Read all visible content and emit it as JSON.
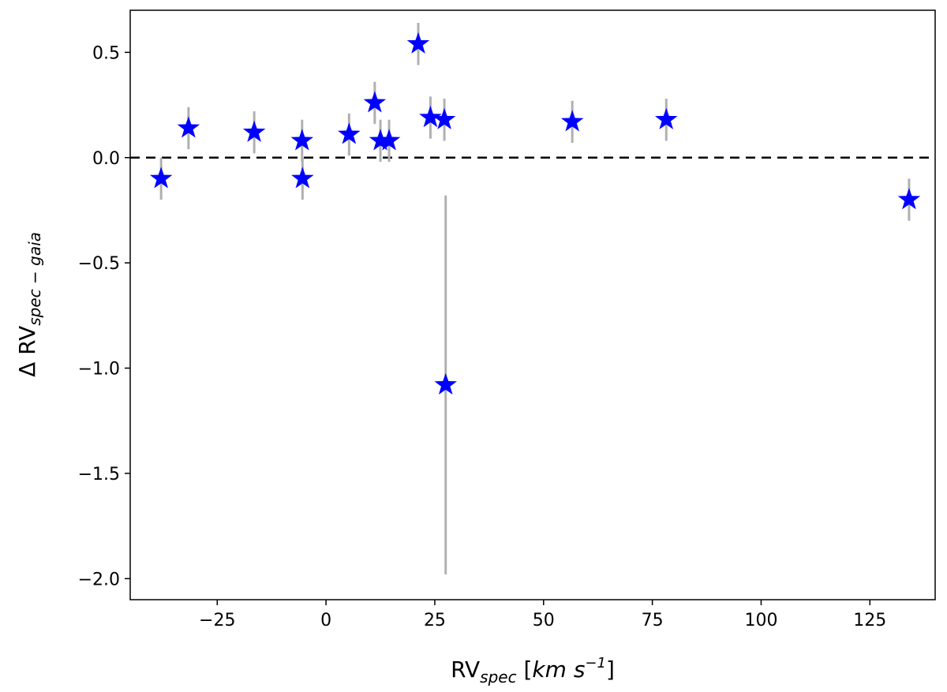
{
  "chart_data": {
    "type": "scatter",
    "title": "",
    "xlabel": {
      "main": "RV",
      "sub": "spec",
      "units_open": " [",
      "units_km": "km",
      "units_space": " ",
      "units_s": "s",
      "units_exp": "−1",
      "units_close": "]"
    },
    "ylabel": {
      "main": "Δ RV",
      "sub": "spec − gaia"
    },
    "xlim": [
      -45,
      140
    ],
    "ylim": [
      -2.1,
      0.7
    ],
    "xticks": [
      -25,
      0,
      25,
      50,
      75,
      100,
      125
    ],
    "yticks": [
      0.5,
      0.0,
      -0.5,
      -1.0,
      -1.5,
      -2.0
    ],
    "xtick_labels": [
      "−25",
      "0",
      "25",
      "50",
      "75",
      "100",
      "125"
    ],
    "ytick_labels": [
      "0.5",
      "0.0",
      "−0.5",
      "−1.0",
      "−1.5",
      "−2.0"
    ],
    "reference_line": {
      "y": 0.0,
      "style": "dashed",
      "color": "#000000"
    },
    "marker": {
      "shape": "star",
      "color": "#0000ff"
    },
    "errorbar_color": "#b0b0b0",
    "grid": false,
    "legend": "none",
    "points": [
      {
        "x": -37.9,
        "y": -0.1,
        "err": 0.1
      },
      {
        "x": -31.6,
        "y": 0.14,
        "err": 0.1
      },
      {
        "x": -16.5,
        "y": 0.12,
        "err": 0.1
      },
      {
        "x": -5.5,
        "y": 0.08,
        "err": 0.1
      },
      {
        "x": -5.4,
        "y": -0.1,
        "err": 0.1
      },
      {
        "x": 5.3,
        "y": 0.11,
        "err": 0.1
      },
      {
        "x": 11.2,
        "y": 0.26,
        "err": 0.1
      },
      {
        "x": 12.5,
        "y": 0.08,
        "err": 0.1
      },
      {
        "x": 14.5,
        "y": 0.08,
        "err": 0.1
      },
      {
        "x": 21.2,
        "y": 0.54,
        "err": 0.1
      },
      {
        "x": 24.0,
        "y": 0.19,
        "err": 0.1
      },
      {
        "x": 27.2,
        "y": 0.18,
        "err": 0.1
      },
      {
        "x": 27.5,
        "y": -1.08,
        "err": 0.9
      },
      {
        "x": 56.6,
        "y": 0.17,
        "err": 0.1
      },
      {
        "x": 78.2,
        "y": 0.18,
        "err": 0.1
      },
      {
        "x": 134.0,
        "y": -0.2,
        "err": 0.1
      }
    ]
  }
}
